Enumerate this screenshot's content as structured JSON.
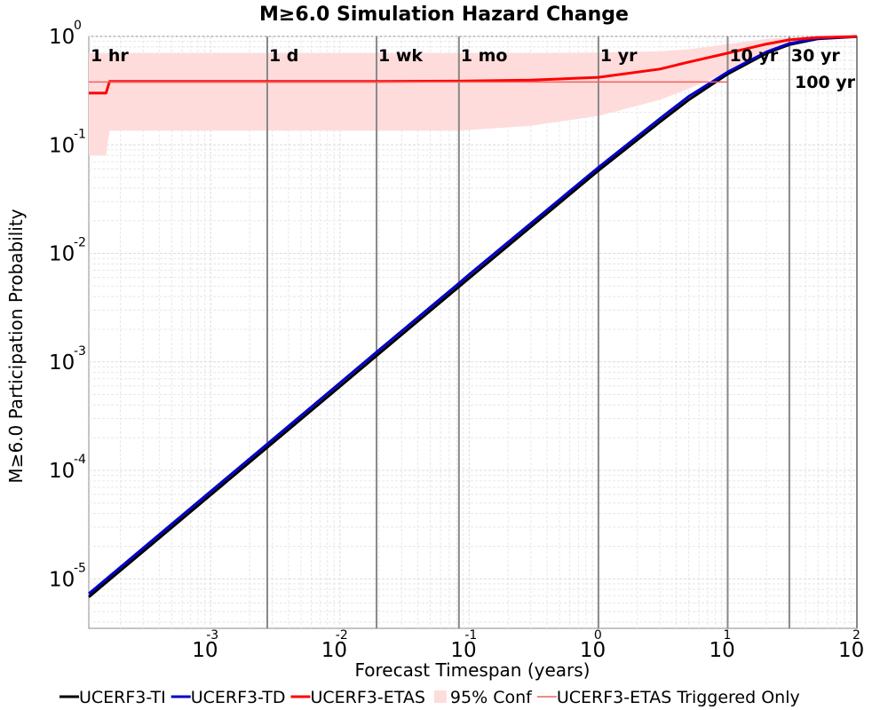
{
  "chart_data": {
    "type": "line",
    "title": "M≥6.0 Simulation Hazard Change",
    "xlabel": "Forecast Timespan (years)",
    "ylabel": "M≥6.0 Participation Probability",
    "x_scale": "log",
    "y_scale": "log",
    "xlim": [
      0.000114,
      100
    ],
    "ylim": [
      3.5e-06,
      1
    ],
    "grid": true,
    "legend_placement": "bottom",
    "x_ticks": [
      {
        "base": "10",
        "exp": "-3",
        "value": 0.001
      },
      {
        "base": "10",
        "exp": "-2",
        "value": 0.01
      },
      {
        "base": "10",
        "exp": "-1",
        "value": 0.1
      },
      {
        "base": "10",
        "exp": "0",
        "value": 1
      },
      {
        "base": "10",
        "exp": "1",
        "value": 10
      },
      {
        "base": "10",
        "exp": "2",
        "value": 100
      }
    ],
    "y_ticks": [
      {
        "base": "10",
        "exp": "0",
        "value": 1
      },
      {
        "base": "10",
        "exp": "-1",
        "value": 0.1
      },
      {
        "base": "10",
        "exp": "-2",
        "value": 0.01
      },
      {
        "base": "10",
        "exp": "-3",
        "value": 0.001
      },
      {
        "base": "10",
        "exp": "-4",
        "value": 0.0001
      },
      {
        "base": "10",
        "exp": "-5",
        "value": 1e-05
      }
    ],
    "timespan_markers": [
      {
        "label": "1 hr",
        "x": 0.000114,
        "label_row": 1
      },
      {
        "label": "1 d",
        "x": 0.00274,
        "label_row": 1
      },
      {
        "label": "1 wk",
        "x": 0.0192,
        "label_row": 1
      },
      {
        "label": "1 mo",
        "x": 0.0833,
        "label_row": 1
      },
      {
        "label": "1 yr",
        "x": 1,
        "label_row": 1
      },
      {
        "label": "10 yr",
        "x": 10,
        "label_row": 1
      },
      {
        "label": "30 yr",
        "x": 30,
        "label_row": 1
      },
      {
        "label": "100 yr",
        "x": 100,
        "label_row": 2
      }
    ],
    "series": [
      {
        "name": "UCERF3-TI",
        "color": "#000000",
        "kind": "line",
        "x": [
          0.000114,
          0.001,
          0.00274,
          0.01,
          0.0192,
          0.0833,
          0.1,
          1,
          3,
          5,
          10,
          20,
          30,
          50,
          100
        ],
        "y": [
          6.8e-06,
          5.95e-05,
          0.000163,
          0.000593,
          0.00114,
          0.00493,
          0.00592,
          0.058,
          0.163,
          0.26,
          0.45,
          0.7,
          0.84,
          0.95,
          0.997
        ]
      },
      {
        "name": "UCERF3-TD",
        "color": "#0000cc",
        "kind": "line",
        "x": [
          0.000114,
          0.001,
          0.00274,
          0.01,
          0.0192,
          0.0833,
          0.1,
          1,
          3,
          5,
          10,
          20,
          30,
          50,
          100
        ],
        "y": [
          7.3e-06,
          6.4e-05,
          0.000175,
          0.00064,
          0.00123,
          0.0053,
          0.0064,
          0.062,
          0.175,
          0.28,
          0.47,
          0.72,
          0.86,
          0.96,
          0.998
        ]
      },
      {
        "name": "UCERF3-ETAS",
        "color": "#ff0000",
        "kind": "line",
        "x": [
          0.000114,
          0.000155,
          0.000165,
          0.001,
          0.00274,
          0.01,
          0.0192,
          0.0833,
          0.3,
          1,
          3,
          5,
          10,
          20,
          30,
          50,
          100
        ],
        "y": [
          0.3,
          0.3,
          0.385,
          0.385,
          0.385,
          0.385,
          0.385,
          0.387,
          0.395,
          0.42,
          0.5,
          0.58,
          0.7,
          0.85,
          0.93,
          0.975,
          0.998
        ]
      },
      {
        "name": "95% Conf",
        "color": "#ffdcdc",
        "kind": "band",
        "x": [
          0.000114,
          0.000155,
          0.000165,
          0.01,
          0.0833,
          0.3,
          1,
          3,
          5,
          10,
          20,
          30,
          50,
          100
        ],
        "lower": [
          0.08,
          0.08,
          0.135,
          0.135,
          0.135,
          0.15,
          0.185,
          0.26,
          0.33,
          0.47,
          0.7,
          0.84,
          0.95,
          0.997
        ],
        "upper": [
          0.7,
          0.7,
          0.7,
          0.7,
          0.7,
          0.7,
          0.71,
          0.73,
          0.76,
          0.85,
          0.95,
          0.98,
          0.995,
          1.0
        ]
      },
      {
        "name": "UCERF3-ETAS Triggered Only",
        "color": "#f06060",
        "kind": "line",
        "x": [
          0.000114,
          10
        ],
        "y": [
          0.38,
          0.38
        ]
      }
    ]
  }
}
